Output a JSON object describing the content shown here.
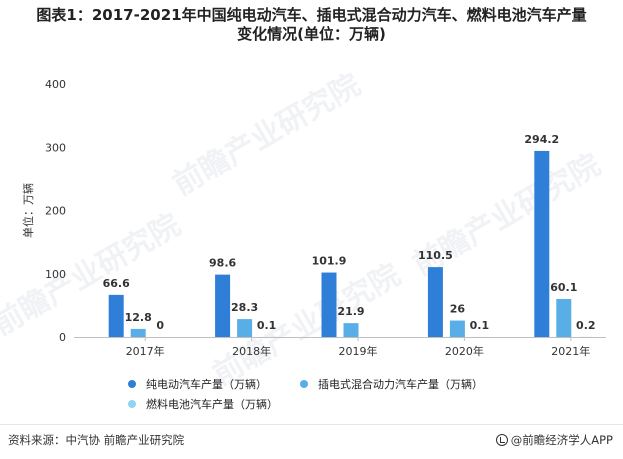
{
  "title": {
    "line1": "图表1：2017-2021年中国纯电动汽车、插电式混合动力汽车、燃料电池汽车产量",
    "line2": "变化情况(单位：万辆)"
  },
  "watermark": "前瞻产业研究院",
  "source": "资料来源：中汽协 前瞻产业研究院",
  "brand": "@前瞻经济学人APP",
  "chart_data": {
    "type": "bar",
    "categories": [
      "2017年",
      "2018年",
      "2019年",
      "2020年",
      "2021年"
    ],
    "series": [
      {
        "name": "纯电动汽车产量（万辆）",
        "color": "#2f7ed8",
        "values": [
          66.6,
          98.6,
          101.9,
          110.5,
          294.2
        ],
        "labels": [
          "66.6",
          "98.6",
          "101.9",
          "110.5",
          "294.2"
        ]
      },
      {
        "name": "插电式混合动力汽车产量（万辆）",
        "color": "#5aaee8",
        "values": [
          12.8,
          28.3,
          21.9,
          26,
          60.1
        ],
        "labels": [
          "12.8",
          "28.3",
          "21.9",
          "26",
          "60.1"
        ]
      },
      {
        "name": "燃料电池汽车产量（万辆）",
        "color": "#8fd3f5",
        "values": [
          0,
          0.1,
          0,
          0.1,
          0.2
        ],
        "labels": [
          "0",
          "0.1",
          "",
          "0.1",
          "0.2"
        ]
      }
    ],
    "ylabel": "单位：万辆",
    "ylim": [
      0,
      400
    ],
    "yticks": [
      0,
      100,
      200,
      300,
      400
    ],
    "legend": "bottom",
    "grid": false
  }
}
